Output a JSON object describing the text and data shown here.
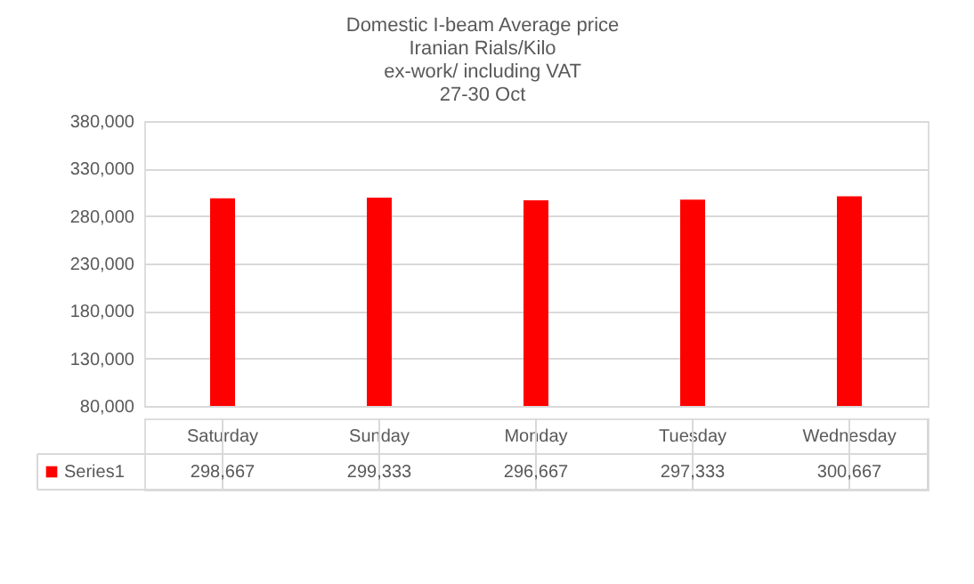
{
  "chart_data": {
    "type": "bar",
    "title": "Domestic I-beam  Average  price\nIranian Rials/Kilo\nex-work/ including VAT\n27-30 Oct",
    "categories": [
      "Saturday",
      "Sunday",
      "Monday",
      "Tuesday",
      "Wednesday"
    ],
    "series": [
      {
        "name": "Series1",
        "color": "#ff0000",
        "values": [
          298667,
          299333,
          296667,
          297333,
          300667
        ],
        "value_labels": [
          "298,667",
          "299,333",
          "296,667",
          "297,333",
          "300,667"
        ]
      }
    ],
    "ylim": [
      80000,
      380000
    ],
    "yticks": [
      {
        "value": 80000,
        "label": "80,000"
      },
      {
        "value": 130000,
        "label": "130,000"
      },
      {
        "value": 180000,
        "label": "180,000"
      },
      {
        "value": 230000,
        "label": "230,000"
      },
      {
        "value": 280000,
        "label": "280,000"
      },
      {
        "value": 330000,
        "label": "330,000"
      },
      {
        "value": 380000,
        "label": "380,000"
      }
    ],
    "grid": "y",
    "legend": "bottom"
  }
}
